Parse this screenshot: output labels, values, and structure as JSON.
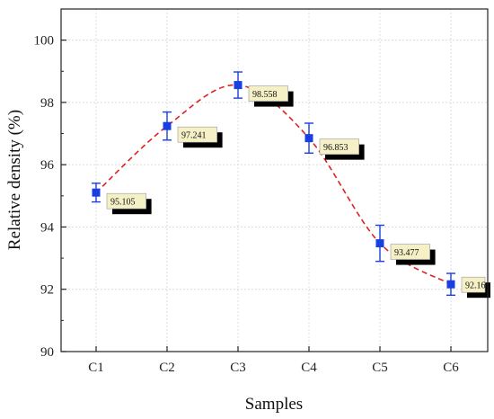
{
  "chart_data": {
    "type": "line",
    "categories": [
      "C1",
      "C2",
      "C3",
      "C4",
      "C5",
      "C6"
    ],
    "series": [
      {
        "values": [
          95.105,
          97.241,
          98.558,
          96.853,
          93.477,
          92.16
        ],
        "errors": [
          0.3,
          0.45,
          0.42,
          0.48,
          0.58,
          0.35
        ]
      }
    ],
    "data_labels": [
      "95.105",
      "97.241",
      "98.558",
      "96.853",
      "93.477",
      "92.16"
    ],
    "xlabel": "Samples",
    "ylabel": "Relative density (%)",
    "ylim": [
      90,
      101
    ],
    "yticks": [
      90,
      92,
      94,
      96,
      98,
      100
    ],
    "grid": true,
    "smooth_curve": true,
    "colors": {
      "marker": "#1a3fe0",
      "curve": "#e02020",
      "grid": "#dcdcdc",
      "label_fill": "#f5f0c6",
      "label_shadow": "#000000"
    }
  }
}
